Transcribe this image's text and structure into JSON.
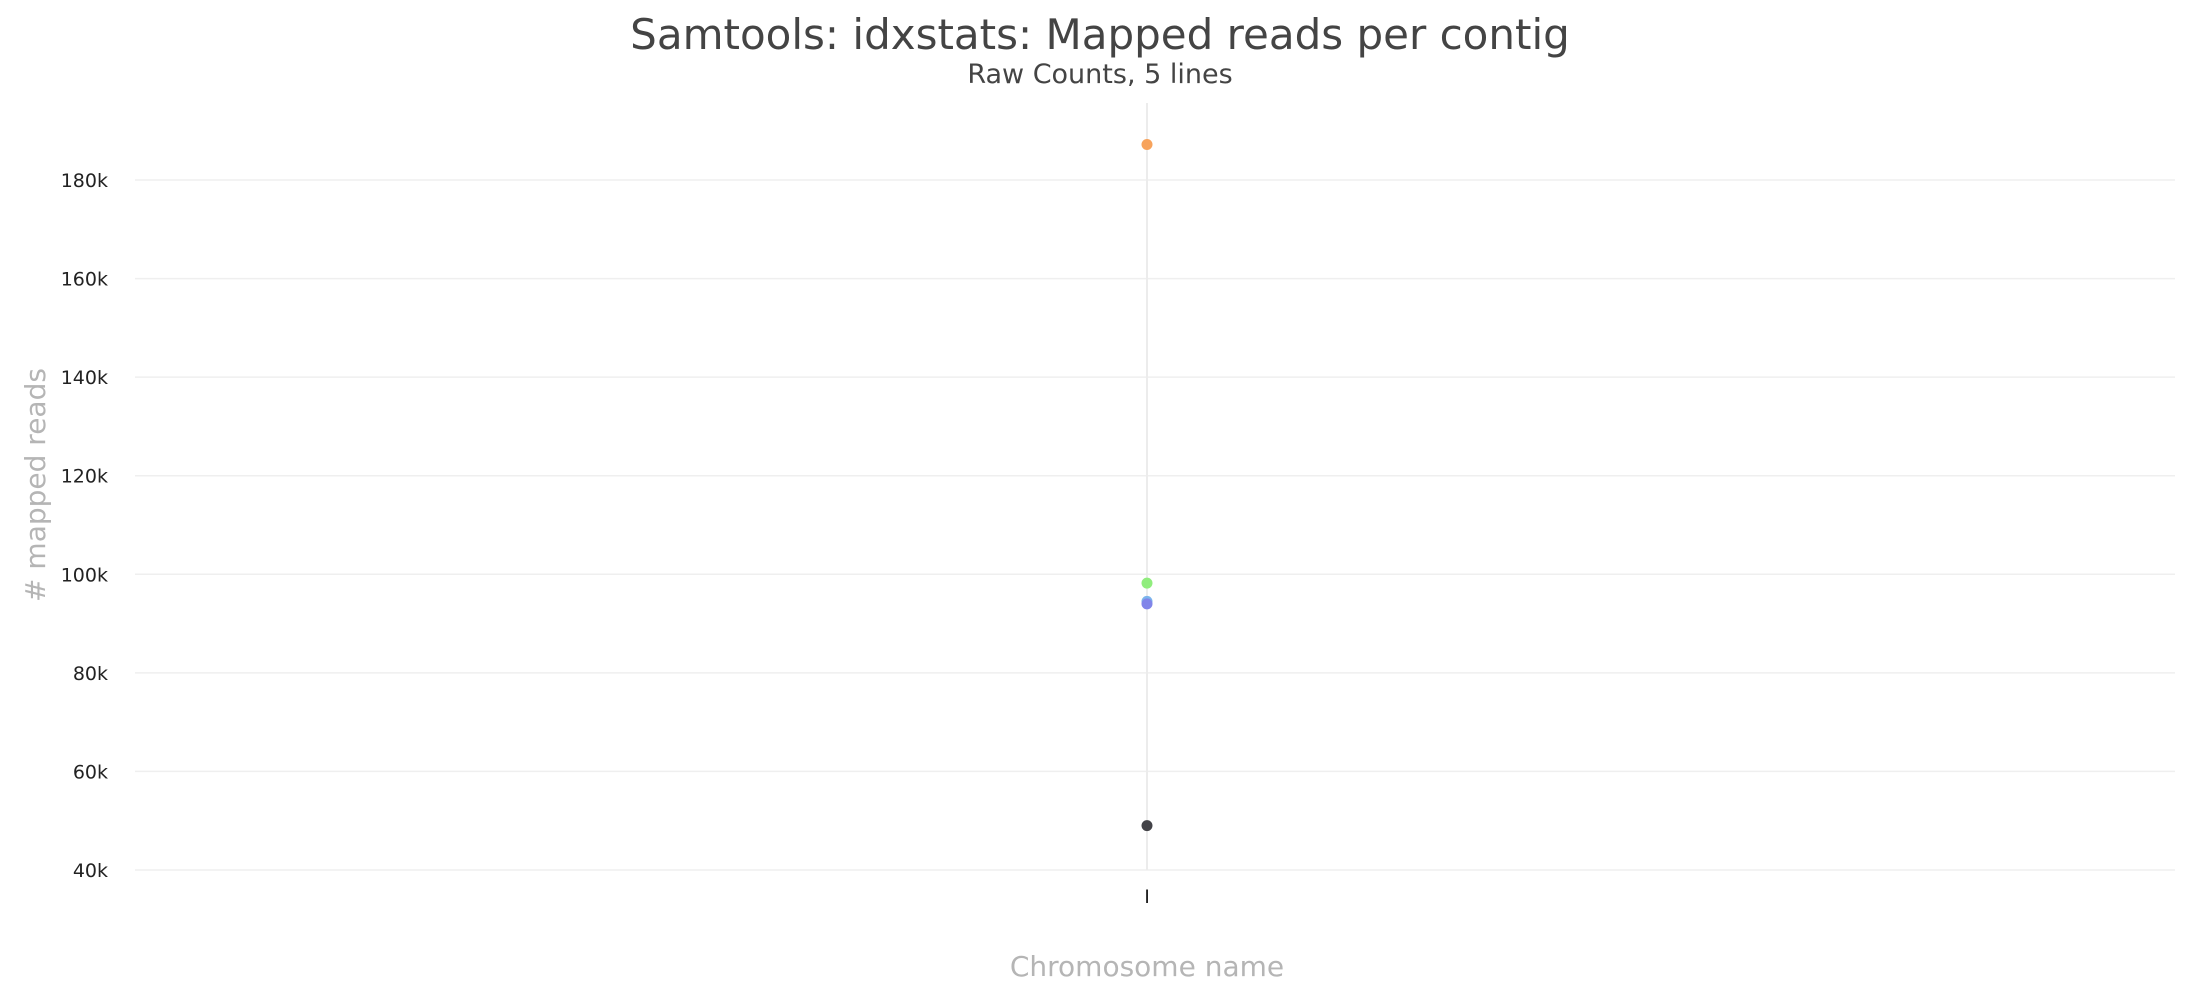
{
  "chart_data": {
    "type": "scatter",
    "title": "Samtools: idxstats: Mapped reads per contig",
    "subtitle": "Raw Counts, 5 lines",
    "xlabel": "Chromosome name",
    "ylabel": "# mapped reads",
    "categories": [
      "I"
    ],
    "ylim": [
      40000,
      196000
    ],
    "yticks": [
      40000,
      60000,
      80000,
      100000,
      120000,
      140000,
      160000,
      180000
    ],
    "ytick_labels": [
      "40k",
      "60k",
      "80k",
      "100k",
      "120k",
      "140k",
      "160k",
      "180k"
    ],
    "grid": true,
    "series": [
      {
        "color": "#434348",
        "values": [
          49000
        ]
      },
      {
        "color": "#7cb5ec",
        "values": [
          94500
        ]
      },
      {
        "color": "#90ed7d",
        "values": [
          98200
        ]
      },
      {
        "color": "#f7a35c",
        "values": [
          187200
        ]
      },
      {
        "color": "#8085e9",
        "values": [
          94000
        ]
      }
    ]
  }
}
